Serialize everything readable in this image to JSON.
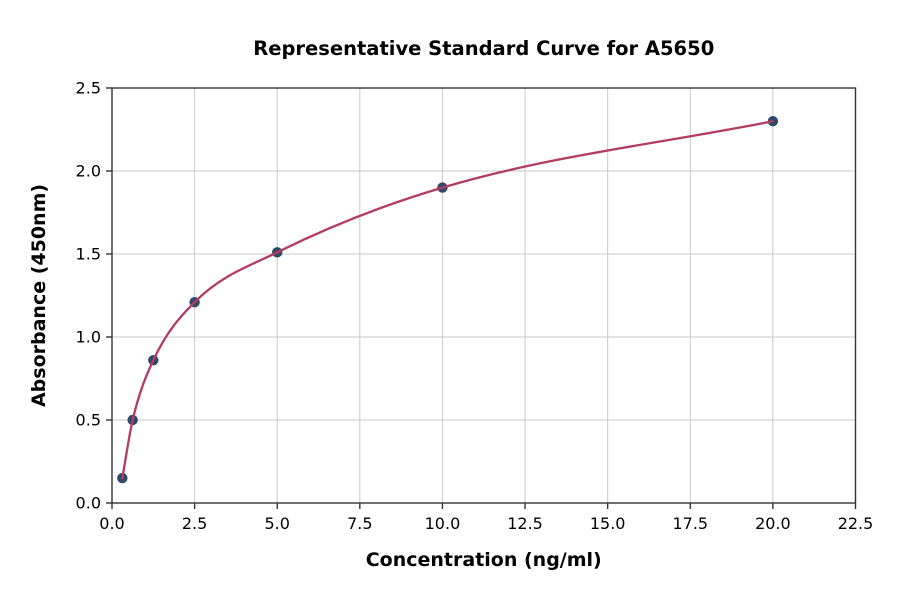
{
  "chart_data": {
    "type": "line",
    "title": "Representative Standard Curve for A5650",
    "xlabel": "Concentration (ng/ml)",
    "ylabel": "Absorbance (450nm)",
    "series": [
      {
        "name": "standard-curve",
        "x": [
          0.3125,
          0.625,
          1.25,
          2.5,
          5.0,
          10.0,
          20.0
        ],
        "y": [
          0.15,
          0.5,
          0.86,
          1.21,
          1.51,
          1.9,
          2.3
        ]
      }
    ],
    "xlim": [
      0,
      22.5
    ],
    "ylim": [
      0,
      2.5
    ],
    "xticks": [
      0.0,
      2.5,
      5.0,
      7.5,
      10.0,
      12.5,
      15.0,
      17.5,
      20.0,
      22.5
    ],
    "xtick_labels": [
      "0.0",
      "2.5",
      "5.0",
      "7.5",
      "10.0",
      "12.5",
      "15.0",
      "17.5",
      "20.0",
      "22.5"
    ],
    "yticks": [
      0.0,
      0.5,
      1.0,
      1.5,
      2.0,
      2.5
    ],
    "ytick_labels": [
      "0.0",
      "0.5",
      "1.0",
      "1.5",
      "2.0",
      "2.5"
    ],
    "grid": true,
    "legend": "none",
    "colors": {
      "curve": "#b43c60",
      "marker": "#2e4a6b",
      "grid": "#c9c9c9",
      "spine": "#333333",
      "tick": "#333333",
      "text": "#000000",
      "background": "#ffffff"
    }
  }
}
